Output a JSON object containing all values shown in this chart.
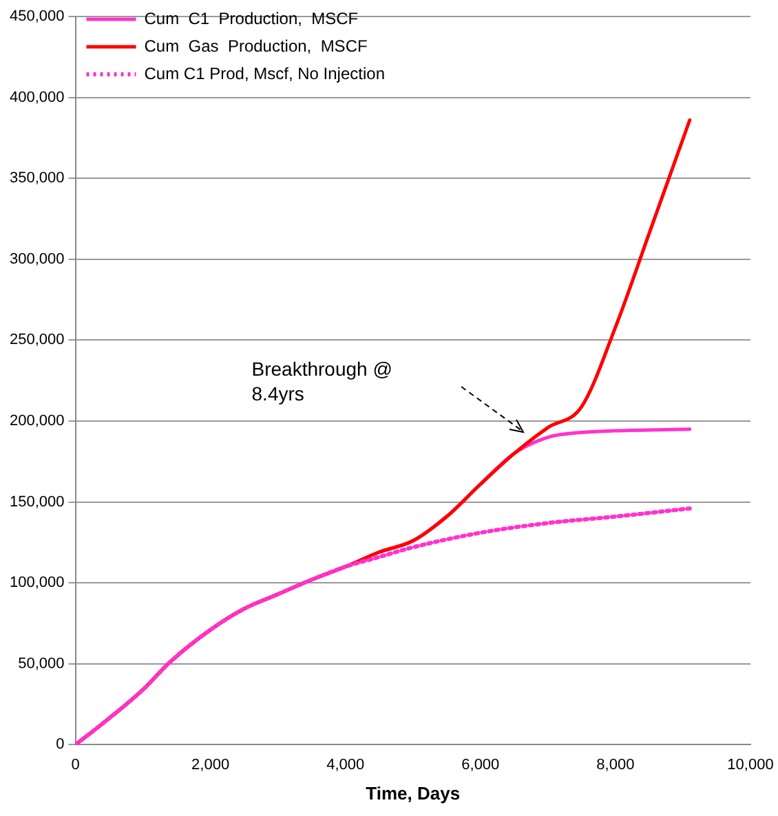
{
  "chart_data": {
    "type": "line",
    "xlabel": "Time, Days",
    "xlim": [
      0,
      10000
    ],
    "xticks": [
      0,
      {
        "value": 2000,
        "label": "2,000"
      },
      {
        "value": 4000,
        "label": "4,000"
      },
      {
        "value": 6000,
        "label": "6,000"
      },
      {
        "value": 8000,
        "label": "8,000"
      },
      {
        "value": 10000,
        "label": "10,000"
      }
    ],
    "ylim": [
      0,
      450000
    ],
    "yticks": [
      0,
      {
        "value": 50000,
        "label": "50,000"
      },
      {
        "value": 100000,
        "label": "100,000"
      },
      {
        "value": 150000,
        "label": "150,000"
      },
      {
        "value": 200000,
        "label": "200,000"
      },
      {
        "value": 250000,
        "label": "250,000"
      },
      {
        "value": 300000,
        "label": "300,000"
      },
      {
        "value": 350000,
        "label": "350,000"
      },
      {
        "value": 400000,
        "label": "400,000"
      },
      {
        "value": 450000,
        "label": "450,000"
      }
    ],
    "grid": "y",
    "legend": "top left",
    "marker": "none",
    "annotations": [
      "Breakthrough @\n8.4yrs"
    ],
    "series": [
      {
        "name": "Cum  C1  Production,  MSCF",
        "color": "#ff33cc",
        "line_style": "solid",
        "x": [
          0,
          400,
          1000,
          1400,
          2000,
          2500,
          3000,
          3500,
          4000,
          4500,
          5000,
          5500,
          6000,
          6500,
          7000,
          7500,
          8000,
          9100
        ],
        "values": [
          0,
          13000,
          34000,
          51000,
          71000,
          84000,
          93000,
          102000,
          110000,
          119000,
          126000,
          141000,
          161000,
          180000,
          190000,
          193000,
          194000,
          195000
        ]
      },
      {
        "name": "Cum  Gas  Production,  MSCF",
        "color": "#ff0000",
        "line_style": "solid",
        "x": [
          0,
          400,
          1000,
          1400,
          2000,
          2500,
          3000,
          3500,
          4000,
          4500,
          5000,
          5500,
          6000,
          6500,
          7000,
          7500,
          8000,
          8500,
          9100
        ],
        "values": [
          0,
          13000,
          34000,
          51000,
          71000,
          84000,
          93000,
          102000,
          110000,
          119000,
          126000,
          141000,
          161000,
          180000,
          196000,
          209000,
          258000,
          316000,
          386000
        ]
      },
      {
        "name": "Cum C1 Prod, Mscf, No Injection",
        "color": "#ff33cc",
        "line_style": "dotted",
        "x": [
          0,
          400,
          1000,
          1400,
          2000,
          2500,
          3000,
          3500,
          4000,
          4500,
          5000,
          6000,
          7000,
          8000,
          9100
        ],
        "values": [
          0,
          13000,
          34000,
          51000,
          71000,
          84000,
          93000,
          102000,
          110000,
          116000,
          122000,
          131000,
          137000,
          141000,
          146000
        ]
      }
    ]
  }
}
